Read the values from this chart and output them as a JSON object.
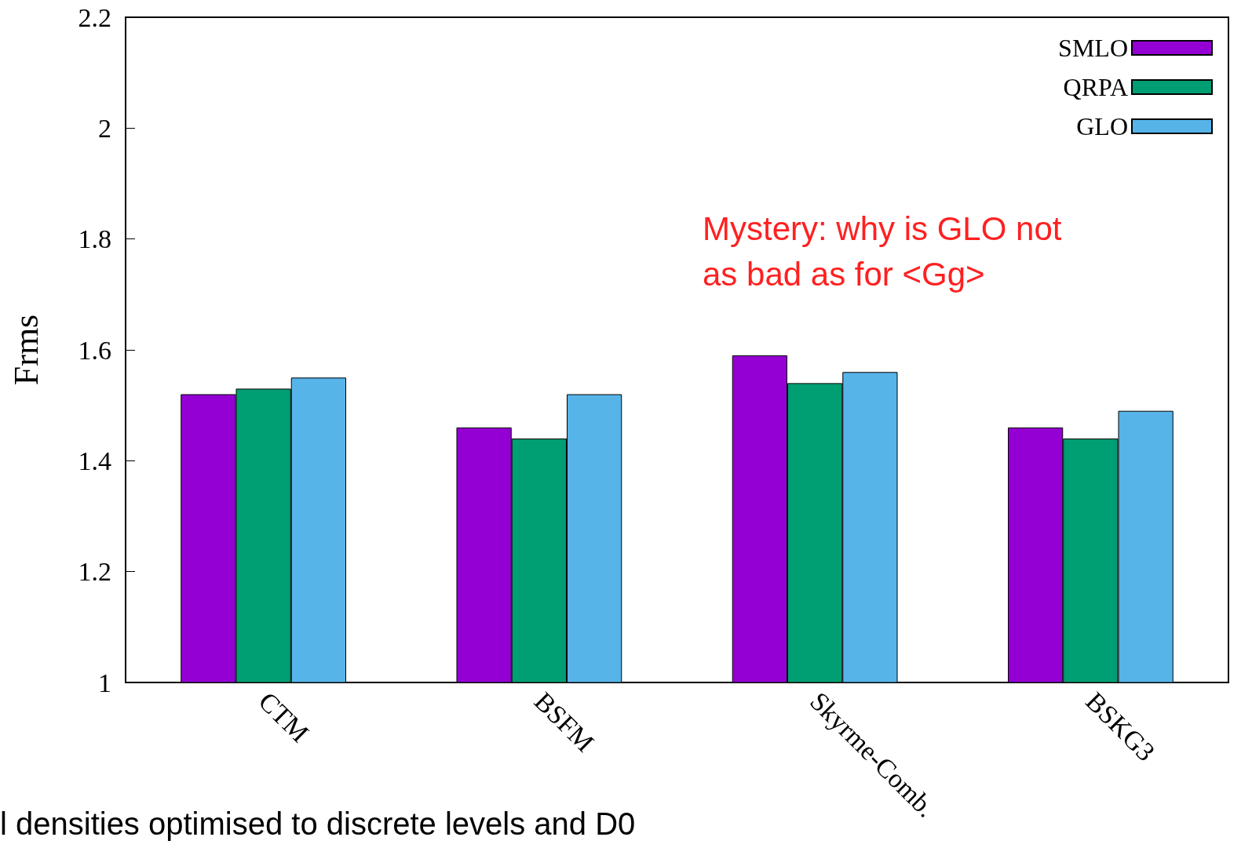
{
  "chart_data": {
    "type": "bar",
    "ylabel": "Frms",
    "categories": [
      "CTM",
      "BSFM",
      "Skyrme-Comb.",
      "BSKG3"
    ],
    "series": [
      {
        "name": "SMLO",
        "color": "#9400d3",
        "values": [
          1.52,
          1.46,
          1.59,
          1.46
        ]
      },
      {
        "name": "QRPA",
        "color": "#009e73",
        "values": [
          1.53,
          1.44,
          1.54,
          1.44
        ]
      },
      {
        "name": "GLO",
        "color": "#56b4e9",
        "values": [
          1.55,
          1.52,
          1.56,
          1.49
        ]
      }
    ],
    "ylim": [
      1,
      2.2
    ],
    "yticks": [
      1,
      1.2,
      1.4,
      1.6,
      1.8,
      2,
      2.2
    ],
    "grid": false,
    "legend": "top right",
    "annotations": [
      "Mystery: why is GLO not\nas bad as for <Gg>",
      "l densities optimised to discrete levels and D0"
    ]
  }
}
